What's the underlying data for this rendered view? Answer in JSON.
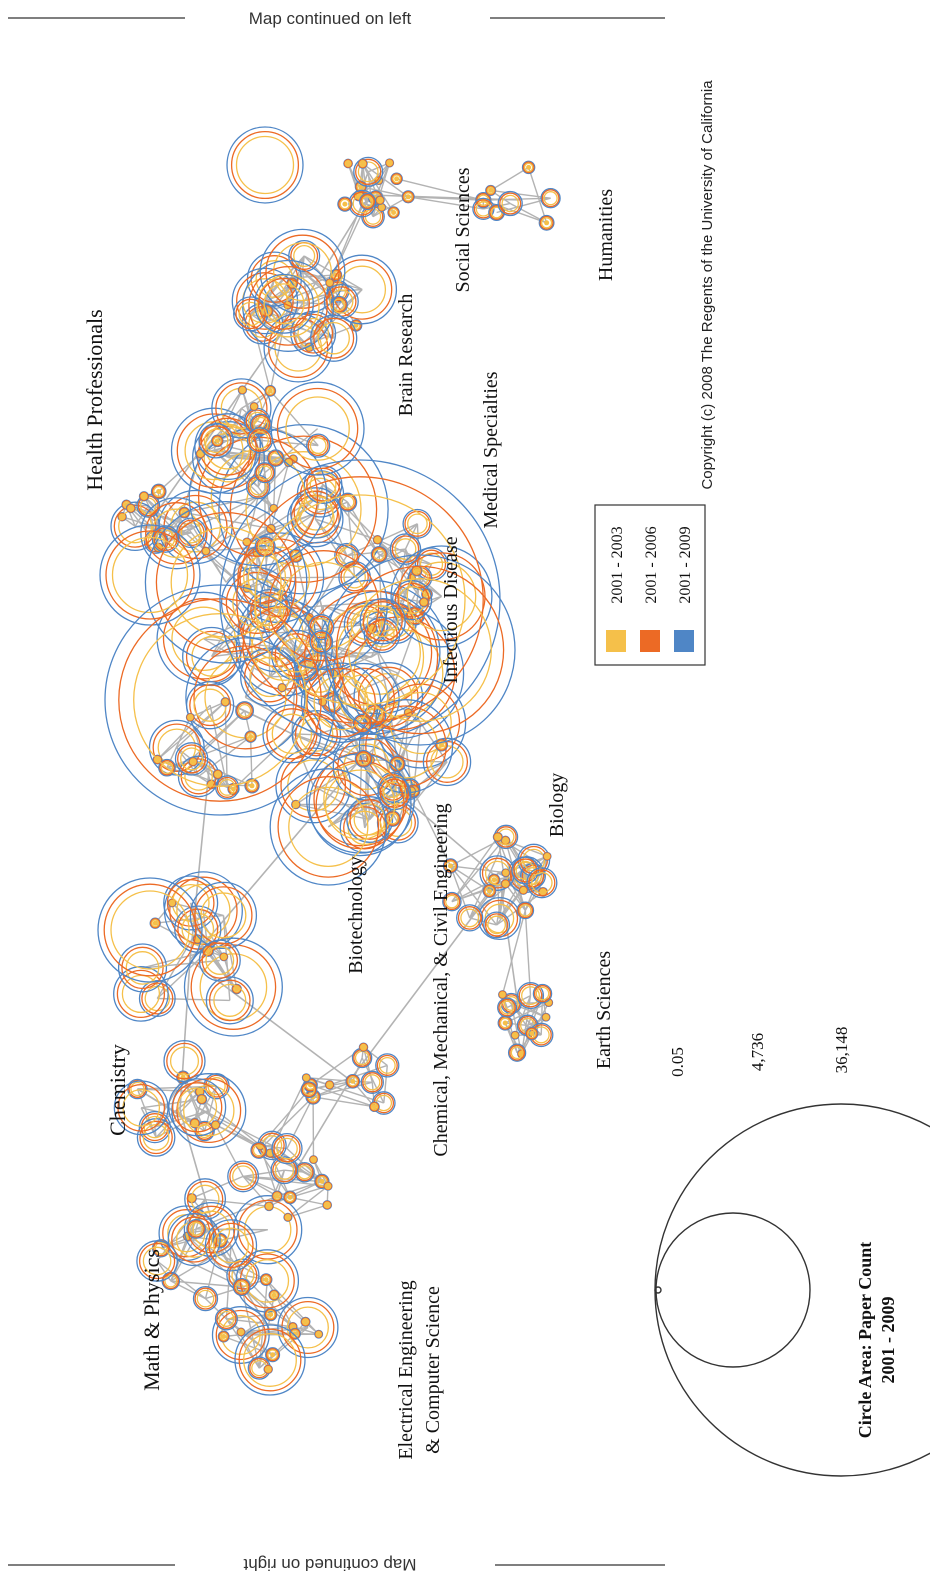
{
  "top_note": "Map continued on left",
  "bottom_note": "Map continued on right",
  "copyright": "Copyright (c) 2008 The Regents of the University of California",
  "regions": [
    "Health Professionals",
    "Math & Physics",
    "Chemistry",
    "Electrical Engineering",
    "& Computer Science",
    "Chemical, Mechanical, & Civil Engineering",
    "Biotechnology",
    "Infectious Disease",
    "Medical Specialties",
    "Brain Research",
    "Social Sciences",
    "Humanities",
    "Biology",
    "Earth Sciences"
  ],
  "legend": {
    "items": [
      {
        "label": "2001 - 2003",
        "color": "#f5c04a"
      },
      {
        "label": "2001 - 2006",
        "color": "#ec6a25"
      },
      {
        "label": "2001 - 2009",
        "color": "#4f86c6"
      }
    ]
  },
  "size_legend": {
    "title": "Circle Area: Paper Count",
    "subtitle": "2001 - 2009",
    "values": [
      "0.05",
      "4,736",
      "36,148"
    ]
  },
  "colors": {
    "early": "#f5c04a",
    "mid": "#ec6a25",
    "late": "#4f86c6",
    "edge": "#b3b3b3",
    "rule": "#333333"
  }
}
